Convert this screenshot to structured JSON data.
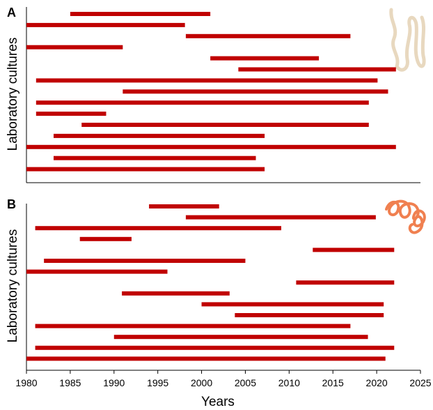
{
  "chart_data": [
    {
      "type": "range_bar",
      "panel_label": "A",
      "ylabel": "Laboratory cultures",
      "color": "#c00000",
      "starts": [
        1985,
        1980,
        1998.2,
        1980,
        2001,
        2004.2,
        1981.1,
        1991,
        1981.1,
        1981.1,
        1986.3,
        1983.1,
        1980,
        1983.1,
        1980
      ],
      "ends": [
        2001,
        1998.1,
        2017,
        1991,
        2013.4,
        2022.2,
        2020.1,
        2021.3,
        2019.1,
        1989.1,
        2019.1,
        2007.2,
        2022.2,
        2006.2,
        2007.2
      ],
      "xlim": [
        1980,
        2025
      ]
    },
    {
      "type": "range_bar",
      "panel_label": "B",
      "ylabel": "Laboratory cultures",
      "xlabel": "Years",
      "color": "#c00000",
      "starts": [
        1994,
        1998.2,
        1981,
        1986.1,
        2012.7,
        1982,
        1980,
        2010.8,
        1990.9,
        2000,
        2003.8,
        1981,
        1990,
        1981,
        1980
      ],
      "ends": [
        2002,
        2019.9,
        2009.1,
        1992,
        2022,
        2005,
        1996.1,
        2022,
        2003.2,
        2020.8,
        2020.8,
        2017,
        2019,
        2022,
        2021
      ],
      "xlim": [
        1980,
        2025
      ],
      "xticks": [
        1980,
        1985,
        1990,
        1995,
        2000,
        2005,
        2010,
        2015,
        2020,
        2025
      ]
    }
  ]
}
